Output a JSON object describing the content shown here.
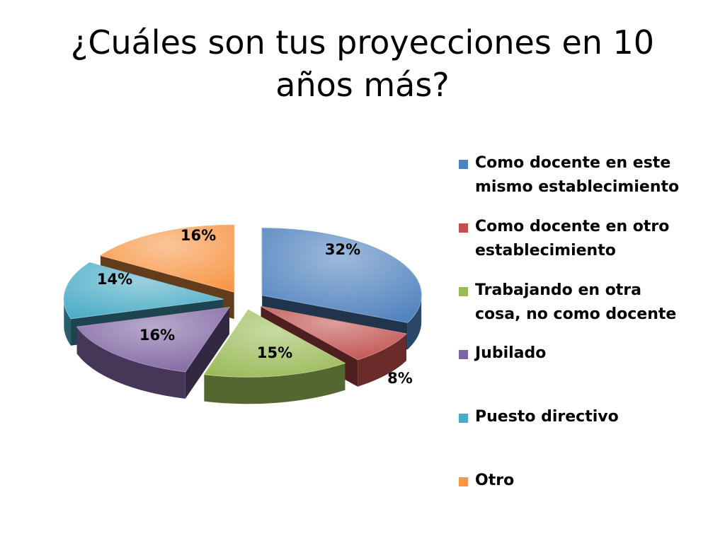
{
  "slide": {
    "title": "¿Cuáles son tus proyecciones en 10 años más?"
  },
  "chart_data": {
    "type": "pie",
    "title": "¿Cuáles son tus proyecciones en 10 años más?",
    "style": "3d-exploded",
    "legend_position": "right",
    "categories": [
      "Como docente en este mismo establecimiento",
      "Como docente en otro establecimiento",
      "Trabajando en otra cosa, no como docente",
      "Jubilado",
      "Puesto directivo",
      "Otro"
    ],
    "values": [
      32,
      8,
      15,
      16,
      14,
      16
    ],
    "labels": [
      "32%",
      "8%",
      "15%",
      "16%",
      "14%",
      "16%"
    ],
    "colors": [
      "#4f81bd",
      "#c0504d",
      "#9bbb59",
      "#8064a2",
      "#4bacc6",
      "#f79646"
    ]
  }
}
